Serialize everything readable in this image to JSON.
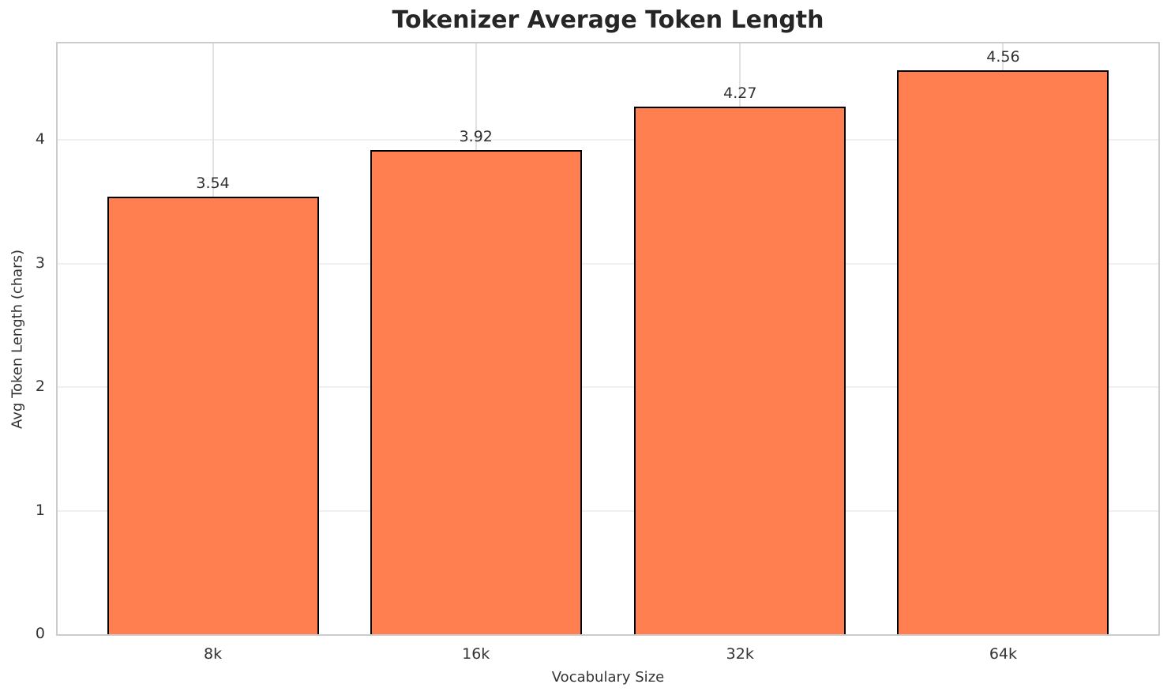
{
  "chart_data": {
    "type": "bar",
    "title": "Tokenizer Average Token Length",
    "xlabel": "Vocabulary Size",
    "ylabel": "Avg Token Length (chars)",
    "categories": [
      "8k",
      "16k",
      "32k",
      "64k"
    ],
    "values": [
      3.54,
      3.92,
      4.27,
      4.56
    ],
    "value_labels": [
      "3.54",
      "3.92",
      "4.27",
      "4.56"
    ],
    "yticks": [
      "0",
      "1",
      "2",
      "3",
      "4"
    ],
    "ylim": [
      0,
      4.78
    ],
    "grid": true,
    "legend_position": "none",
    "colors": {
      "bar_fill": "#FF7F50",
      "bar_edge": "#000000",
      "title_text": "#262626",
      "tick_text": "#333333",
      "grid_h": "#f0f0f0",
      "grid_v": "#e2e2e2",
      "spine": "#cccccc",
      "background": "#ffffff"
    }
  }
}
